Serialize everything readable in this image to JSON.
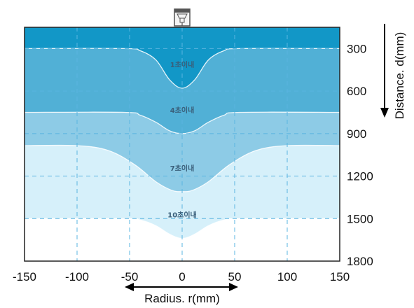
{
  "chart_data": {
    "type": "area",
    "xlabel": "Radius. r(mm)",
    "ylabel": "Distance. d(mm)",
    "xlim": [
      -150,
      150
    ],
    "ylim": [
      150,
      1800
    ],
    "y_inverted": true,
    "x_ticks": [
      "-150",
      "-100",
      "-50",
      "0",
      "50",
      "100",
      "150"
    ],
    "x_tick_values": [
      -150,
      -100,
      -50,
      0,
      50,
      100,
      150
    ],
    "y_ticks": [
      "300",
      "600",
      "900",
      "1200",
      "1500",
      "1800"
    ],
    "y_tick_values": [
      300,
      600,
      900,
      1200,
      1500,
      1800
    ],
    "grid": "dashed",
    "series": [
      {
        "name": "1초이내",
        "color": "#1297c7",
        "x": [
          -150,
          -55,
          -40,
          -25,
          -12,
          0,
          12,
          25,
          40,
          55,
          150
        ],
        "y": [
          300,
          300,
          315,
          380,
          520,
          580,
          520,
          380,
          315,
          300,
          300
        ]
      },
      {
        "name": "4초이내",
        "color": "#51b0d6",
        "x": [
          -150,
          -55,
          -40,
          -25,
          -12,
          0,
          12,
          25,
          40,
          55,
          150
        ],
        "y": [
          750,
          750,
          770,
          820,
          880,
          900,
          880,
          820,
          770,
          750,
          750
        ]
      },
      {
        "name": "7초이내",
        "color": "#8dcbe6",
        "x": [
          -150,
          -100,
          -70,
          -45,
          -25,
          -10,
          0,
          10,
          25,
          45,
          70,
          100,
          150
        ],
        "y": [
          985,
          985,
          1020,
          1120,
          1240,
          1300,
          1310,
          1300,
          1240,
          1120,
          1020,
          985,
          985
        ]
      },
      {
        "name": "10초이내",
        "color": "#d6f0fa",
        "x": [
          -150,
          -55,
          -40,
          -25,
          -12,
          0,
          12,
          25,
          40,
          55,
          150
        ],
        "y": [
          1500,
          1500,
          1510,
          1550,
          1610,
          1640,
          1610,
          1550,
          1510,
          1500,
          1500
        ]
      }
    ]
  }
}
